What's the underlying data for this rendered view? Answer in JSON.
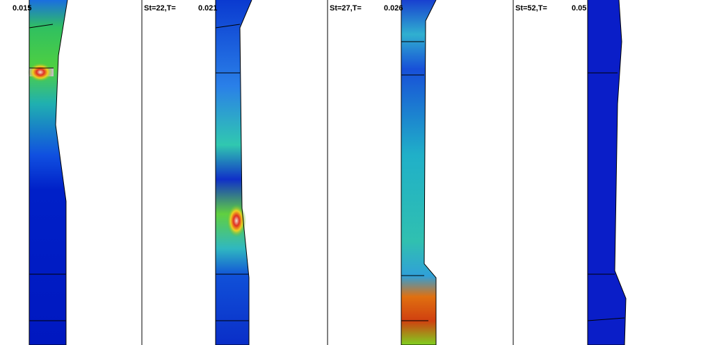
{
  "panels": [
    {
      "value": "0.015"
    },
    {
      "label": "St=22,T=",
      "value": "0.021"
    },
    {
      "label": "St=27,T=",
      "value": "0.026"
    },
    {
      "label": "St=52,T=",
      "value": "0.05"
    }
  ]
}
